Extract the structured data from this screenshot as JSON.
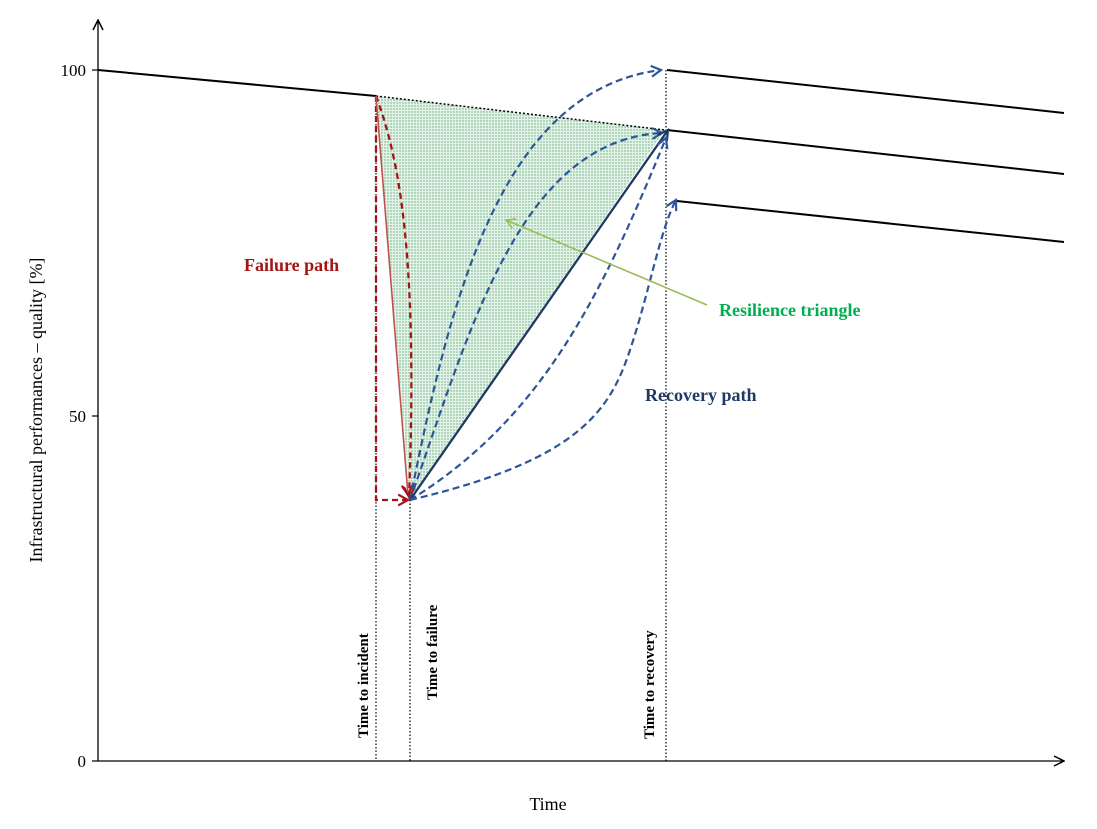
{
  "diagram": {
    "title": "",
    "axes": {
      "x_label": "Time",
      "y_label": "Infrastructural performances – quality [%]",
      "y_ticks": [
        "100",
        "50",
        "0"
      ]
    },
    "milestones": {
      "incident": "Time to incident",
      "failure": "Time to failure",
      "recovery": "Time to recovery"
    },
    "annotations": {
      "failure_path": "Failure path",
      "recovery_path": "Recovery path",
      "resilience_triangle": "Resilience triangle"
    },
    "colors": {
      "failure": "#A31515",
      "failure_light": "#C0504D",
      "recovery": "#1F3864",
      "recovery_dashed": "#2E5597",
      "resilience": "#00B050",
      "triangle_fill": "#C9E6D2",
      "triangle_arrow": "#9BBB59",
      "axis": "#000000"
    }
  }
}
